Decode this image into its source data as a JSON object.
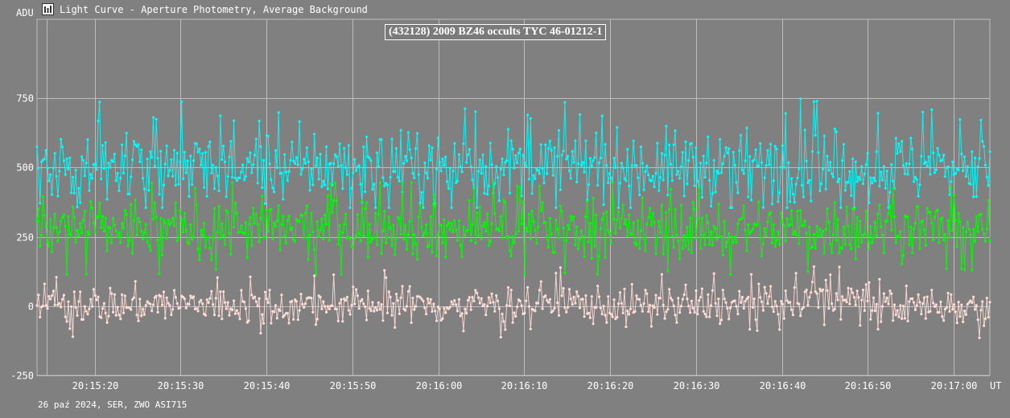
{
  "window": {
    "title": "Light Curve - Aperture Photometry, Average Background",
    "icon": "light-curve-app-icon"
  },
  "footer": {
    "note": "26 paź 2024, SER, ZWO ASI715"
  },
  "colors": {
    "background": "#808080",
    "grid": "#bdbdbd",
    "series_target": "#00ffff",
    "series_comparison": "#00ff00",
    "series_background": "#ffdcd6"
  },
  "chart_data": {
    "type": "line",
    "title": "(432128) 2009 BZ46 occults TYC 46-01212-1",
    "ylabel": "ADU",
    "xlabel": "UT",
    "ylim": [
      -250,
      970
    ],
    "y_ticks": [
      -250,
      0,
      250,
      500,
      750
    ],
    "x_ticks": [
      "20:15:20",
      "20:15:30",
      "20:15:40",
      "20:15:50",
      "20:16:00",
      "20:16:10",
      "20:16:20",
      "20:16:30",
      "20:16:40",
      "20:16:50",
      "20:17:00"
    ],
    "x_range": [
      "20:15:13.3",
      "20:17:04.2"
    ],
    "grid": true,
    "legend": "none",
    "markers": "dots with vertical drop lines",
    "n_samples_per_series": 640,
    "series": [
      {
        "color": "#00ffff",
        "level_by_segment": [
          500,
          510,
          505,
          510,
          500,
          495,
          500,
          505,
          510,
          495,
          500,
          505,
          500,
          505,
          500,
          500,
          505,
          500,
          510,
          505,
          500,
          505,
          500,
          510
        ],
        "noise_sd": 65,
        "min": 355,
        "max": 850
      },
      {
        "color": "#00ff00",
        "level_by_segment": [
          275,
          280,
          280,
          275,
          285,
          280,
          275,
          280,
          285,
          280,
          275,
          280,
          280,
          285,
          280,
          275,
          280,
          275,
          275,
          280,
          280,
          285,
          280,
          280
        ],
        "noise_sd": 55,
        "min": 115,
        "max": 445
      },
      {
        "color": "#ffdcd6",
        "level_by_segment": [
          5,
          10,
          0,
          10,
          5,
          5,
          0,
          0,
          5,
          5,
          0,
          10,
          15,
          10,
          0,
          0,
          5,
          5,
          5,
          40,
          10,
          0,
          5,
          0
        ],
        "noise_sd": 35,
        "min": -130,
        "max": 190
      }
    ]
  }
}
